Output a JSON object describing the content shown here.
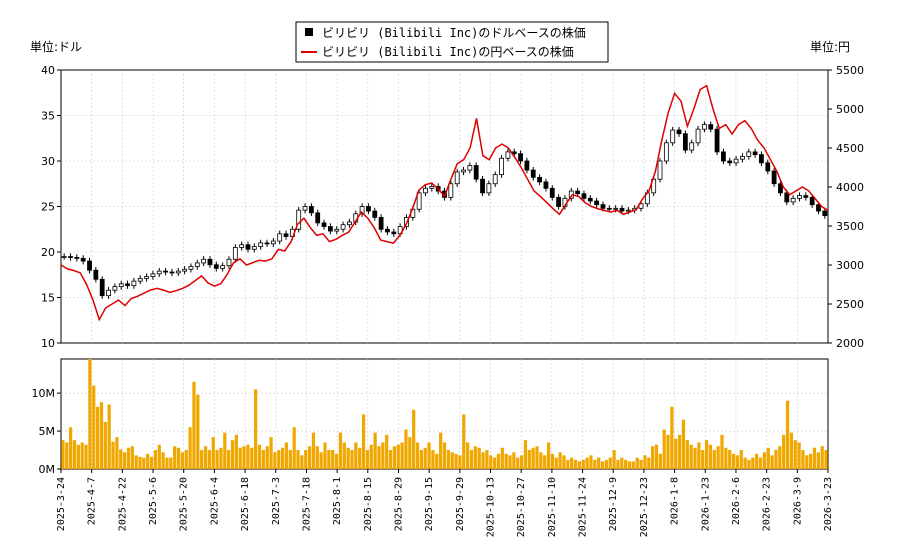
{
  "chart_data": [
    {
      "type": "candlestick",
      "name": "price",
      "legend": [
        {
          "label": "ビリビリ (Bilibili Inc)のドルベースの株価",
          "color": "#000000",
          "marker": "square"
        },
        {
          "label": "ビリビリ (Bilibili Inc)の円ベースの株価",
          "color": "#dd0000",
          "marker": "line"
        }
      ],
      "left_unit": "単位:ドル",
      "right_unit": "単位:円",
      "left_axis": {
        "ylim": [
          10,
          40
        ],
        "ticks": [
          "10",
          "15",
          "20",
          "25",
          "30",
          "35",
          "40"
        ]
      },
      "right_axis": {
        "ylim": [
          2000,
          5500
        ],
        "ticks": [
          "2000",
          "2500",
          "3000",
          "3500",
          "4000",
          "4500",
          "5000",
          "5500"
        ]
      },
      "usd_close": [
        19.5,
        19.4,
        19.3,
        19.0,
        18.0,
        17.0,
        15.2,
        15.8,
        16.2,
        16.5,
        16.3,
        16.8,
        17.1,
        17.3,
        17.6,
        17.9,
        17.8,
        17.7,
        17.9,
        18.1,
        18.4,
        18.8,
        19.2,
        18.6,
        18.2,
        18.5,
        19.2,
        20.5,
        20.8,
        20.3,
        20.6,
        21.0,
        20.9,
        21.2,
        22.0,
        21.7,
        22.5,
        24.6,
        25.0,
        24.3,
        23.2,
        22.8,
        22.3,
        22.5,
        23.0,
        23.3,
        24.2,
        25.0,
        24.5,
        23.8,
        22.5,
        22.2,
        22.0,
        22.8,
        23.8,
        24.7,
        26.5,
        27.0,
        27.2,
        26.7,
        26.0,
        27.5,
        28.8,
        29.0,
        29.5,
        28.0,
        26.5,
        27.5,
        28.5,
        30.3,
        31.0,
        30.8,
        30.0,
        29.0,
        28.2,
        27.7,
        27.0,
        26.0,
        25.0,
        25.9,
        26.7,
        26.4,
        25.9,
        25.6,
        25.2,
        24.8,
        24.7,
        24.8,
        24.5,
        24.6,
        24.8,
        25.3,
        26.5,
        28.0,
        30.0,
        32.0,
        33.4,
        33.0,
        31.2,
        32.0,
        33.5,
        34.0,
        33.5,
        31.0,
        30.0,
        29.8,
        30.2,
        30.5,
        31.0,
        30.7,
        29.8,
        28.9,
        27.5,
        26.5,
        25.5,
        25.9,
        26.2,
        26.0,
        25.2,
        24.5,
        24.0
      ],
      "jpy_close": [
        3000,
        2950,
        2930,
        2900,
        2750,
        2550,
        2300,
        2450,
        2500,
        2550,
        2480,
        2570,
        2600,
        2640,
        2680,
        2700,
        2680,
        2650,
        2670,
        2700,
        2740,
        2800,
        2860,
        2770,
        2730,
        2760,
        2880,
        3030,
        3080,
        3000,
        3030,
        3060,
        3050,
        3080,
        3200,
        3180,
        3300,
        3520,
        3600,
        3480,
        3380,
        3400,
        3300,
        3330,
        3380,
        3420,
        3550,
        3680,
        3600,
        3480,
        3320,
        3300,
        3280,
        3380,
        3520,
        3720,
        3960,
        4030,
        4050,
        3980,
        3880,
        4100,
        4300,
        4350,
        4500,
        4880,
        4400,
        4350,
        4500,
        4550,
        4500,
        4380,
        4250,
        4100,
        3950,
        3880,
        3800,
        3720,
        3650,
        3780,
        3900,
        3880,
        3800,
        3750,
        3720,
        3700,
        3680,
        3700,
        3650,
        3680,
        3710,
        3850,
        3950,
        4200,
        4600,
        4950,
        5200,
        5100,
        4780,
        5000,
        5250,
        5300,
        5000,
        4750,
        4800,
        4680,
        4800,
        4850,
        4750,
        4600,
        4500,
        4350,
        4200,
        4000,
        3900,
        3950,
        4000,
        3950,
        3850,
        3750,
        3700
      ]
    },
    {
      "type": "bar",
      "name": "volume",
      "color": "#f0a800",
      "ylim": [
        0,
        14500000
      ],
      "ticks": [
        "0M",
        "5M",
        "10M"
      ],
      "x_labels": [
        "2025-3-24",
        "2025-4-7",
        "2025-4-22",
        "2025-5-6",
        "2025-5-20",
        "2025-6-4",
        "2025-6-18",
        "2025-7-3",
        "2025-7-18",
        "2025-8-1",
        "2025-8-15",
        "2025-8-29",
        "2025-9-15",
        "2025-9-29",
        "2025-10-13",
        "2025-10-27",
        "2025-11-10",
        "2025-11-24",
        "2025-12-9",
        "2025-12-23",
        "2026-1-8",
        "2026-1-23",
        "2026-2-6",
        "2026-2-23",
        "2026-3-9",
        "2026-3-23"
      ],
      "values_m": [
        3.8,
        3.5,
        5.5,
        3.8,
        3.2,
        3.5,
        3.2,
        14.5,
        11.0,
        8.2,
        8.8,
        6.2,
        8.5,
        3.6,
        4.2,
        2.6,
        2.2,
        2.8,
        3.0,
        1.8,
        1.6,
        1.5,
        2.0,
        1.6,
        2.5,
        3.2,
        2.2,
        1.5,
        1.5,
        3.0,
        2.8,
        2.2,
        2.5,
        5.5,
        11.5,
        9.8,
        2.5,
        3.0,
        2.5,
        4.2,
        2.5,
        2.8,
        4.8,
        2.5,
        3.8,
        4.5,
        2.8,
        3.0,
        3.2,
        2.8,
        10.5,
        3.2,
        2.5,
        3.0,
        4.2,
        2.2,
        2.5,
        2.8,
        3.5,
        2.5,
        5.5,
        2.5,
        1.8,
        2.5,
        3.0,
        4.8,
        3.0,
        2.2,
        3.5,
        2.5,
        2.5,
        2.0,
        4.8,
        3.5,
        2.8,
        2.5,
        3.5,
        2.8,
        7.2,
        2.5,
        3.2,
        4.8,
        3.0,
        3.5,
        4.5,
        2.5,
        3.0,
        3.2,
        3.5,
        5.2,
        4.2,
        7.8,
        3.5,
        2.5,
        2.8,
        3.5,
        2.5,
        2.0,
        4.8,
        3.5,
        2.5,
        2.2,
        2.0,
        1.8,
        7.2,
        3.5,
        2.5,
        3.0,
        2.8,
        2.2,
        2.5,
        1.8,
        1.5,
        2.0,
        2.8,
        2.0,
        1.8,
        2.2,
        1.5,
        1.8,
        3.8,
        2.5,
        2.8,
        3.0,
        2.2,
        1.8,
        3.5,
        2.0,
        1.5,
        2.2,
        1.8,
        1.2,
        1.5,
        1.2,
        1.0,
        1.2,
        1.5,
        1.8,
        1.2,
        1.5,
        1.0,
        1.2,
        1.5,
        2.5,
        1.2,
        1.5,
        1.2,
        1.0,
        1.0,
        1.5,
        1.2,
        1.8,
        1.5,
        3.0,
        3.2,
        2.0,
        5.2,
        4.5,
        8.2,
        4.0,
        4.5,
        6.5,
        3.8,
        3.2,
        2.8,
        3.5,
        2.5,
        3.8,
        3.2,
        2.5,
        3.0,
        4.5,
        2.8,
        2.5,
        2.0,
        1.8,
        2.5,
        1.5,
        1.2,
        1.5,
        2.0,
        1.5,
        2.2,
        2.8,
        1.8,
        2.5,
        3.0,
        4.5,
        9.0,
        4.8,
        3.8,
        3.5,
        2.5,
        1.8,
        2.0,
        2.8,
        2.2,
        3.0,
        2.5
      ]
    }
  ]
}
